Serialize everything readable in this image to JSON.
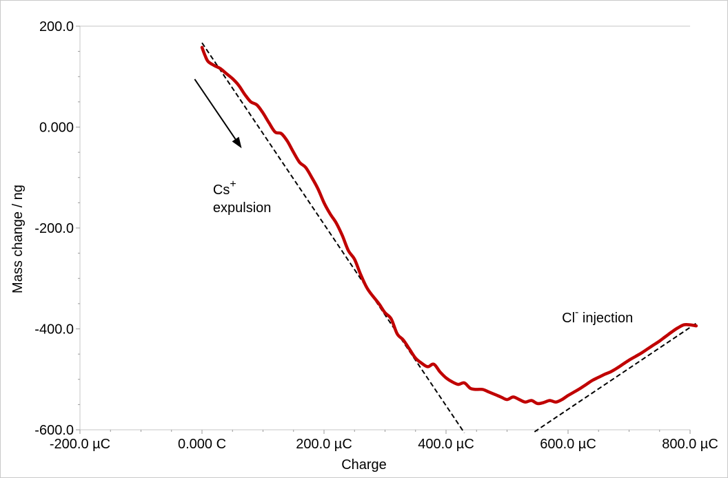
{
  "chart_data": {
    "type": "line",
    "title": "",
    "xlabel": "Charge",
    "ylabel": "Mass change / ng",
    "xlim": [
      -200,
      800
    ],
    "ylim": [
      -600,
      200
    ],
    "x_units": "µC",
    "x_ticks": [
      {
        "value": -200,
        "label": "-200.0 µC"
      },
      {
        "value": 0,
        "label": "0.000 C"
      },
      {
        "value": 200,
        "label": "200.0 µC"
      },
      {
        "value": 400,
        "label": "400.0 µC"
      },
      {
        "value": 600,
        "label": "600.0 µC"
      },
      {
        "value": 800,
        "label": "800.0 µC"
      }
    ],
    "y_ticks": [
      {
        "value": 200,
        "label": "200.0"
      },
      {
        "value": 0,
        "label": "0.000"
      },
      {
        "value": -200,
        "label": "-200.0"
      },
      {
        "value": -400,
        "label": "-400.0"
      },
      {
        "value": -600,
        "label": "-600.0"
      }
    ],
    "grid": false,
    "series": [
      {
        "color": "#c00000",
        "x": [
          0,
          5,
          10,
          20,
          30,
          40,
          50,
          60,
          70,
          80,
          90,
          100,
          110,
          120,
          130,
          140,
          150,
          160,
          170,
          180,
          190,
          200,
          210,
          220,
          230,
          240,
          250,
          260,
          270,
          280,
          290,
          300,
          310,
          320,
          330,
          340,
          350,
          360,
          370,
          380,
          390,
          400,
          410,
          420,
          430,
          440,
          450,
          460,
          470,
          480,
          490,
          500,
          510,
          520,
          530,
          540,
          550,
          560,
          570,
          580,
          590,
          600,
          610,
          620,
          630,
          640,
          650,
          660,
          670,
          680,
          690,
          700,
          710,
          720,
          730,
          740,
          750,
          760,
          770,
          780,
          790,
          800,
          810
        ],
        "y": [
          158,
          142,
          130,
          122,
          116,
          106,
          96,
          83,
          65,
          50,
          44,
          28,
          8,
          -10,
          -13,
          -28,
          -50,
          -70,
          -80,
          -100,
          -122,
          -150,
          -172,
          -190,
          -215,
          -245,
          -262,
          -292,
          -318,
          -335,
          -350,
          -368,
          -380,
          -410,
          -422,
          -440,
          -458,
          -468,
          -475,
          -470,
          -485,
          -497,
          -505,
          -510,
          -507,
          -518,
          -520,
          -520,
          -525,
          -530,
          -535,
          -540,
          -535,
          -540,
          -545,
          -542,
          -548,
          -546,
          -542,
          -545,
          -540,
          -532,
          -525,
          -518,
          -510,
          -502,
          -496,
          -490,
          -485,
          -478,
          -470,
          -462,
          -455,
          -448,
          -440,
          -432,
          -424,
          -415,
          -406,
          -398,
          -392,
          -392,
          -394
        ]
      }
    ],
    "fit_lines": [
      {
        "x": [
          0,
          430
        ],
        "y": [
          167,
          -606
        ]
      },
      {
        "x": [
          545,
          810
        ],
        "y": [
          -604,
          -389
        ]
      }
    ],
    "arrow": {
      "x": [
        -12,
        65
      ],
      "y": [
        95,
        -42
      ]
    },
    "annotations": [
      {
        "id": "cs",
        "main": "Cs",
        "sup": "+",
        "second_line": "expulsion",
        "x": 18,
        "y": -133
      },
      {
        "id": "cl",
        "main": "Cl",
        "sup": "-",
        "rest": " injection",
        "x": 590,
        "y": -387
      }
    ]
  }
}
